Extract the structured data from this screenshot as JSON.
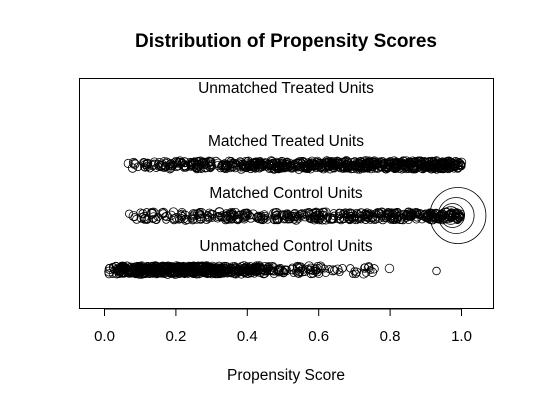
{
  "chart_data": {
    "type": "scatter",
    "title": "Distribution of Propensity Scores",
    "xlabel": "Propensity Score",
    "ylabel": "",
    "xlim": [
      -0.08,
      1.08
    ],
    "x_ticks": [
      "0.0",
      "0.2",
      "0.4",
      "0.6",
      "0.8",
      "1.0"
    ],
    "x_tick_values": [
      0,
      0.2,
      0.4,
      0.6,
      0.8,
      1.0
    ],
    "grid": false,
    "legend": "none",
    "groups": [
      {
        "label": "Unmatched Treated Units",
        "density": [],
        "large_points": []
      },
      {
        "label": "Matched Treated Units",
        "density": [
          [
            0.06,
            0.07,
            0.2
          ],
          [
            0.07,
            0.12,
            0.6
          ],
          [
            0.12,
            0.2,
            1.0
          ],
          [
            0.2,
            0.4,
            1.4
          ],
          [
            0.4,
            0.7,
            2.0
          ],
          [
            0.7,
            1.0,
            2.6
          ]
        ],
        "large_points": []
      },
      {
        "label": "Matched Control Units",
        "density": [
          [
            0.06,
            0.1,
            0.25
          ],
          [
            0.1,
            0.2,
            0.7
          ],
          [
            0.2,
            0.4,
            1.0
          ],
          [
            0.4,
            0.7,
            1.1
          ],
          [
            0.7,
            0.9,
            1.4
          ],
          [
            0.9,
            1.0,
            1.8
          ]
        ],
        "large_points": [
          {
            "x": 0.975,
            "w": 3.0
          },
          {
            "x": 0.985,
            "w": 4.5
          },
          {
            "x": 0.99,
            "w": 7.0
          },
          {
            "x": 0.97,
            "w": 2.2
          },
          {
            "x": 0.955,
            "w": 1.8
          },
          {
            "x": 0.93,
            "w": 1.5
          },
          {
            "x": 0.9,
            "w": 1.3
          }
        ]
      },
      {
        "label": "Unmatched Control Units",
        "density": [
          [
            0.01,
            0.04,
            1.2
          ],
          [
            0.04,
            0.3,
            4.0
          ],
          [
            0.3,
            0.45,
            2.5
          ],
          [
            0.45,
            0.6,
            1.0
          ],
          [
            0.6,
            0.75,
            0.4
          ],
          [
            0.75,
            0.8,
            0.1
          ]
        ],
        "large_points": [],
        "outliers": [
          0.93
        ]
      }
    ]
  }
}
